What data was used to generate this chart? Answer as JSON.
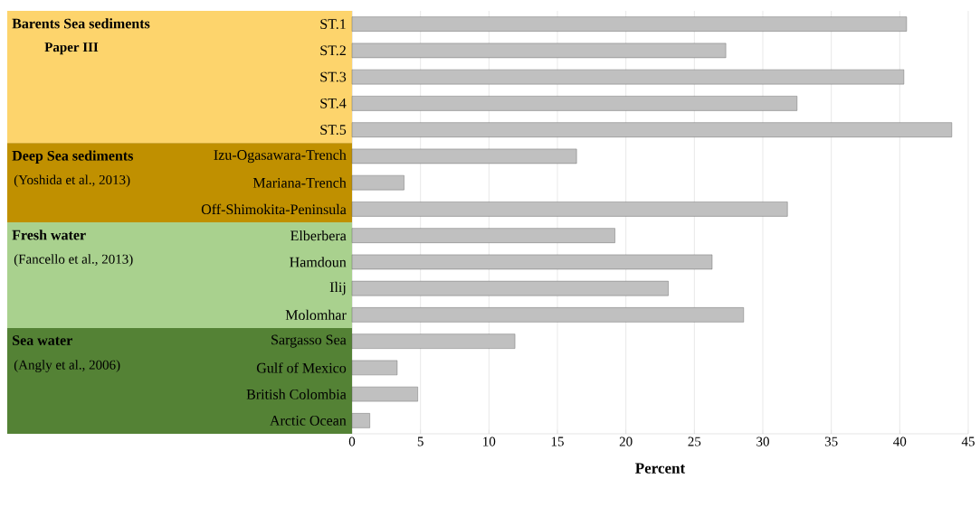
{
  "chart_data": {
    "type": "bar",
    "orientation": "horizontal",
    "xlabel": "Percent",
    "categories": [
      "ST.1",
      "ST.2",
      "ST.3",
      "ST.4",
      "ST.5",
      "Izu-Ogasawara-Trench",
      "Mariana-Trench",
      "Off-Shimokita-Peninsula",
      "Elberbera",
      "Hamdoun",
      "Ilij",
      "Molomhar",
      "Sargasso Sea",
      "Gulf of Mexico",
      "British Colombia",
      "Arctic Ocean"
    ],
    "values": [
      40.5,
      27.3,
      40.3,
      32.5,
      43.8,
      16.4,
      3.8,
      31.8,
      19.2,
      26.3,
      23.1,
      28.6,
      11.9,
      3.3,
      4.8,
      1.3
    ],
    "color": "#c0c0c0",
    "xlim": [
      0,
      45
    ],
    "xticks": [
      0,
      5,
      10,
      15,
      20,
      25,
      30,
      35,
      40,
      45
    ],
    "grid": "x",
    "annotations": [
      "Barents Sea sediments",
      "Paper III",
      "Deep Sea sediments",
      "(Yoshida et al., 2013)",
      "Fresh water",
      "(Fancello et al., 2013)",
      "Sea water",
      "(Angly et al., 2006)"
    ]
  }
}
